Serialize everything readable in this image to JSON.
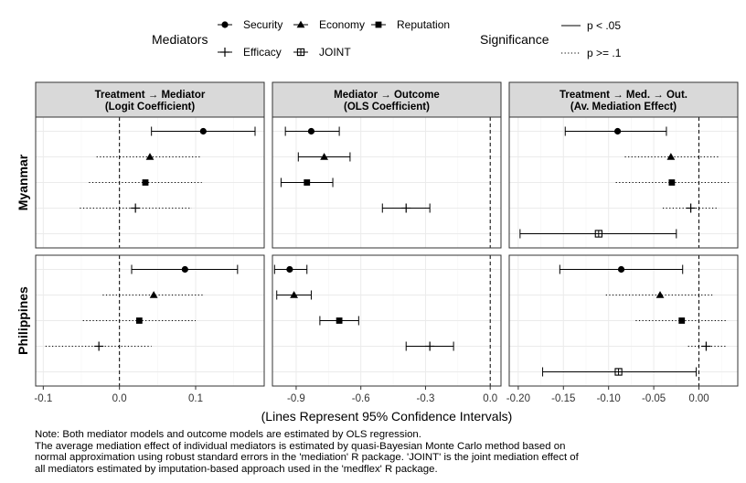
{
  "legend": {
    "mediators_title": "Mediators",
    "mediators": [
      {
        "name": "Security",
        "marker": "circle"
      },
      {
        "name": "Economy",
        "marker": "triangle"
      },
      {
        "name": "Reputation",
        "marker": "square"
      },
      {
        "name": "Efficacy",
        "marker": "plus"
      },
      {
        "name": "JOINT",
        "marker": "boxed-plus"
      }
    ],
    "significance_title": "Significance",
    "significance": [
      {
        "name": "p < .05",
        "line": "solid"
      },
      {
        "name": "p >= .1",
        "line": "dotted"
      }
    ]
  },
  "x_axis_title": "(Lines Represent 95% Confidence Intervals)",
  "note_lines": [
    "Note: Both mediator models and outcome models are estimated by OLS regression.",
    "The average mediation effect of individual mediators is estimated by quasi-Bayesian Monte Carlo method based on",
    "normal approximation using robust standard errors in the 'mediation' R package. 'JOINT' is the joint mediation effect of",
    "all mediators estimated by imputation-based approach used in the 'medflex' R package."
  ],
  "colors": {
    "strip_fill": "#d9d9d9",
    "grid": "#ebebeb",
    "ink": "#000000"
  },
  "chart_data": {
    "type": "scatter",
    "rows": [
      "Myanmar",
      "Philippines"
    ],
    "panels": [
      {
        "title_line1": "Treatment → Mediator",
        "title_line2": "(Logit Coefficient)",
        "xlim": [
          -0.11,
          0.19
        ],
        "ticks": [
          -0.1,
          0.0,
          0.1
        ],
        "tick_labels": [
          "-0.1",
          "0.0",
          "0.1"
        ],
        "reference": 0,
        "data": {
          "Myanmar": [
            {
              "mediator": "Security",
              "estimate": 0.11,
              "low": 0.042,
              "high": 0.178,
              "sig": "p < .05"
            },
            {
              "mediator": "Economy",
              "estimate": 0.04,
              "low": -0.03,
              "high": 0.108,
              "sig": "p >= .1"
            },
            {
              "mediator": "Reputation",
              "estimate": 0.034,
              "low": -0.04,
              "high": 0.108,
              "sig": "p >= .1"
            },
            {
              "mediator": "Efficacy",
              "estimate": 0.021,
              "low": -0.052,
              "high": 0.095,
              "sig": "p >= .1"
            }
          ],
          "Philippines": [
            {
              "mediator": "Security",
              "estimate": 0.086,
              "low": 0.016,
              "high": 0.155,
              "sig": "p < .05"
            },
            {
              "mediator": "Economy",
              "estimate": 0.045,
              "low": -0.022,
              "high": 0.111,
              "sig": "p >= .1"
            },
            {
              "mediator": "Reputation",
              "estimate": 0.026,
              "low": -0.048,
              "high": 0.1,
              "sig": "p >= .1"
            },
            {
              "mediator": "Efficacy",
              "estimate": -0.027,
              "low": -0.097,
              "high": 0.042,
              "sig": "p >= .1"
            }
          ]
        }
      },
      {
        "title_line1": "Mediator → Outcome",
        "title_line2": "(OLS Coefficient)",
        "xlim": [
          -1.01,
          0.05
        ],
        "ticks": [
          -0.9,
          -0.6,
          -0.3,
          0.0
        ],
        "tick_labels": [
          "-0.9",
          "-0.6",
          "-0.3",
          "0.0"
        ],
        "reference": 0,
        "data": {
          "Myanmar": [
            {
              "mediator": "Security",
              "estimate": -0.83,
              "low": -0.95,
              "high": -0.7,
              "sig": "p < .05"
            },
            {
              "mediator": "Economy",
              "estimate": -0.77,
              "low": -0.89,
              "high": -0.65,
              "sig": "p < .05"
            },
            {
              "mediator": "Reputation",
              "estimate": -0.85,
              "low": -0.97,
              "high": -0.73,
              "sig": "p < .05"
            },
            {
              "mediator": "Efficacy",
              "estimate": -0.39,
              "low": -0.5,
              "high": -0.28,
              "sig": "p < .05"
            }
          ],
          "Philippines": [
            {
              "mediator": "Security",
              "estimate": -0.93,
              "low": -1.0,
              "high": -0.85,
              "sig": "p < .05"
            },
            {
              "mediator": "Economy",
              "estimate": -0.91,
              "low": -0.99,
              "high": -0.83,
              "sig": "p < .05"
            },
            {
              "mediator": "Reputation",
              "estimate": -0.7,
              "low": -0.79,
              "high": -0.61,
              "sig": "p < .05"
            },
            {
              "mediator": "Efficacy",
              "estimate": -0.28,
              "low": -0.39,
              "high": -0.17,
              "sig": "p < .05"
            }
          ]
        }
      },
      {
        "title_line1": "Treatment → Med. → Out.",
        "title_line2": "(Av. Mediation Effect)",
        "xlim": [
          -0.21,
          0.043
        ],
        "ticks": [
          -0.2,
          -0.15,
          -0.1,
          -0.05,
          0.0
        ],
        "tick_labels": [
          "-0.20",
          "-0.15",
          "-0.10",
          "-0.05",
          "0.00"
        ],
        "reference": 0,
        "data": {
          "Myanmar": [
            {
              "mediator": "Security",
              "estimate": -0.09,
              "low": -0.148,
              "high": -0.036,
              "sig": "p < .05"
            },
            {
              "mediator": "Economy",
              "estimate": -0.031,
              "low": -0.082,
              "high": 0.022,
              "sig": "p >= .1"
            },
            {
              "mediator": "Reputation",
              "estimate": -0.03,
              "low": -0.092,
              "high": 0.033,
              "sig": "p >= .1"
            },
            {
              "mediator": "Efficacy",
              "estimate": -0.009,
              "low": -0.04,
              "high": 0.022,
              "sig": "p >= .1"
            },
            {
              "mediator": "JOINT",
              "estimate": -0.111,
              "low": -0.198,
              "high": -0.025,
              "sig": "p < .05"
            }
          ],
          "Philippines": [
            {
              "mediator": "Security",
              "estimate": -0.086,
              "low": -0.154,
              "high": -0.018,
              "sig": "p < .05"
            },
            {
              "mediator": "Economy",
              "estimate": -0.043,
              "low": -0.103,
              "high": 0.017,
              "sig": "p >= .1"
            },
            {
              "mediator": "Reputation",
              "estimate": -0.019,
              "low": -0.07,
              "high": 0.032,
              "sig": "p >= .1"
            },
            {
              "mediator": "Efficacy",
              "estimate": 0.008,
              "low": -0.012,
              "high": 0.031,
              "sig": "p >= .1"
            },
            {
              "mediator": "JOINT",
              "estimate": -0.089,
              "low": -0.173,
              "high": -0.003,
              "sig": "p < .05"
            }
          ]
        }
      }
    ],
    "grid": true,
    "legend_position": "top"
  }
}
